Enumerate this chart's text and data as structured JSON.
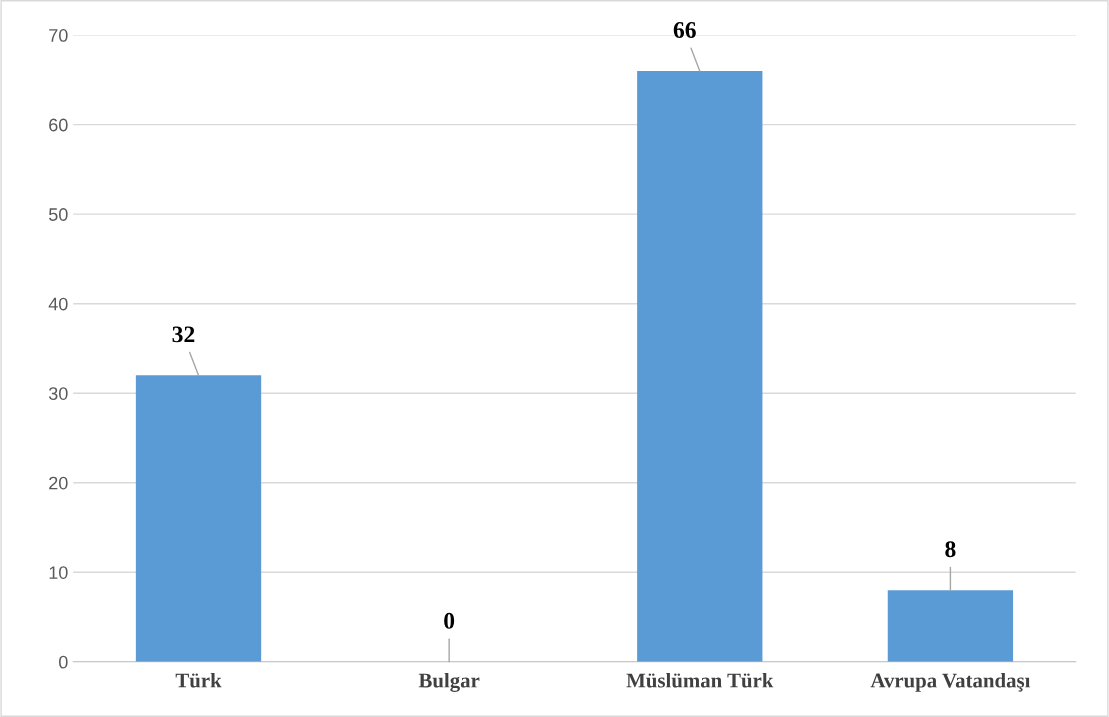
{
  "chart_data": {
    "type": "bar",
    "categories": [
      "Türk",
      "Bulgar",
      "Müslüman Türk",
      "Avrupa Vatandaşı"
    ],
    "values": [
      32,
      0,
      66,
      8
    ],
    "color": "#5b9bd5",
    "ylim": [
      0,
      70
    ],
    "yticks": [
      0,
      10,
      20,
      30,
      40,
      50,
      60,
      70
    ],
    "grid": "y",
    "data_labels": true
  }
}
